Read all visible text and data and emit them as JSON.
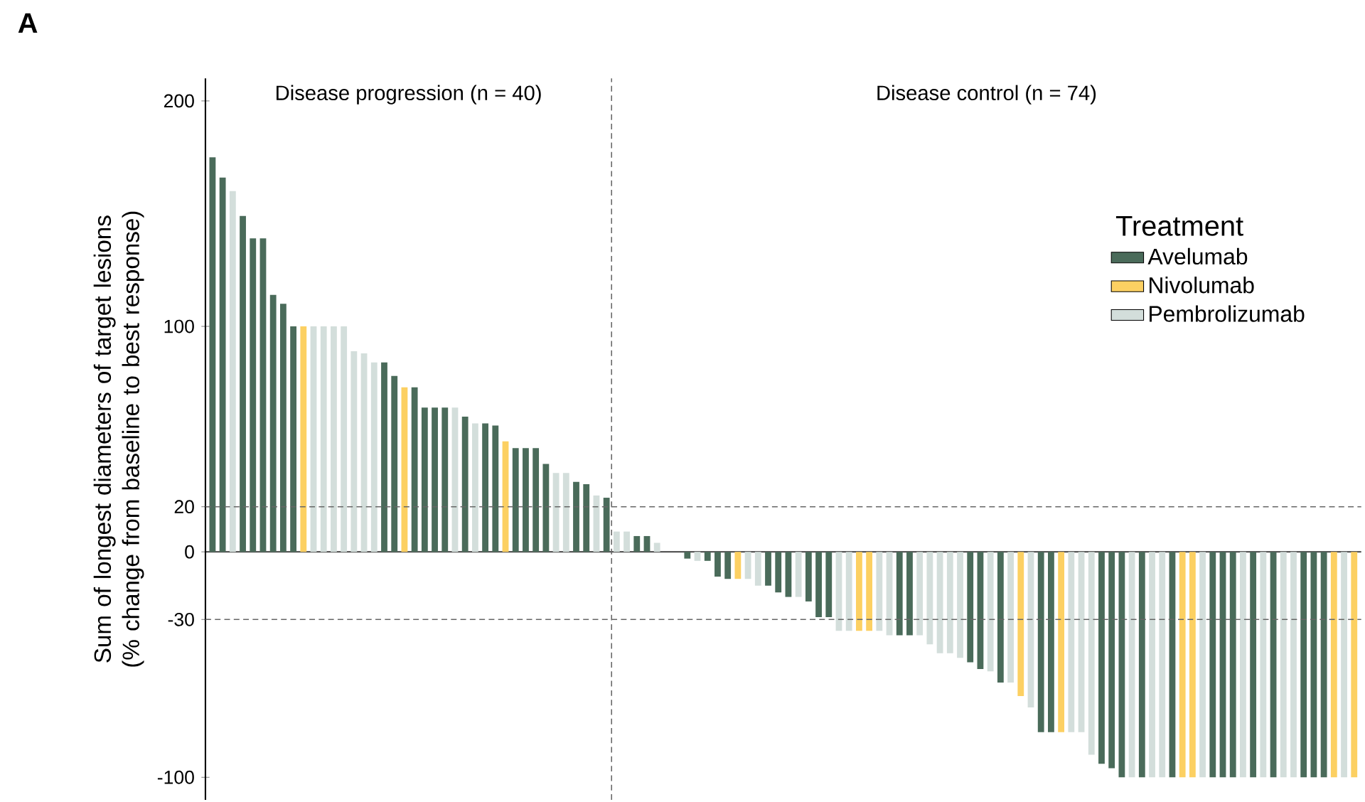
{
  "chart_data": {
    "type": "bar",
    "title": "A",
    "ylabel": "Sum of longest diameters of target lesions (% change from baseline to best response)",
    "legend_title": "Treatment",
    "annotations": [
      "Disease progression (n = 40)",
      "Disease control (n = 74)"
    ],
    "categories": [
      null,
      null,
      null,
      null,
      null,
      null,
      null,
      null,
      null,
      null,
      null,
      null,
      null,
      null,
      null,
      null,
      null,
      null,
      null,
      null,
      null,
      null,
      null,
      null,
      null,
      null,
      null,
      null,
      null,
      null,
      null,
      null,
      null,
      null,
      null,
      null,
      null,
      null,
      null,
      null,
      null,
      null,
      null,
      null,
      null,
      null,
      null,
      null,
      null,
      null,
      null,
      null,
      null,
      null,
      null,
      null,
      null,
      null,
      null,
      null,
      null,
      null,
      null,
      null,
      null,
      null,
      null,
      null,
      null,
      null,
      null,
      null,
      null,
      null,
      null,
      null,
      null,
      null,
      null,
      null,
      null,
      null,
      null,
      null,
      null,
      null,
      null,
      null,
      null,
      null,
      null,
      null,
      null,
      null,
      null,
      null,
      null,
      null,
      null,
      null,
      null,
      null,
      null,
      null,
      null,
      null,
      null,
      null,
      null,
      null,
      null,
      null,
      null,
      null
    ],
    "series": [
      {
        "name": "Avelumab",
        "color": "#4a6b5a",
        "values": [
          175,
          166,
          null,
          149,
          139,
          139,
          114,
          110,
          100,
          null,
          null,
          null,
          null,
          null,
          null,
          null,
          null,
          84,
          78,
          null,
          73,
          64,
          64,
          64,
          null,
          60,
          null,
          57,
          56,
          null,
          46,
          46,
          46,
          39,
          null,
          null,
          31,
          30,
          null,
          24,
          null,
          null,
          7,
          7,
          null,
          null,
          null,
          -3,
          null,
          -4,
          -11,
          -12,
          null,
          null,
          null,
          -15,
          -18,
          -20,
          null,
          -22,
          -29,
          -29,
          null,
          null,
          null,
          null,
          null,
          null,
          -37,
          -37,
          null,
          null,
          null,
          null,
          null,
          -49,
          -52,
          null,
          -58,
          null,
          null,
          null,
          -80,
          -80,
          null,
          null,
          null,
          null,
          -94,
          -96,
          -100,
          null,
          -100,
          null,
          null,
          -100,
          null,
          null,
          null,
          -100,
          -100,
          -100,
          null,
          -100,
          null,
          -100,
          null,
          null,
          -100,
          -100,
          -100,
          null,
          null,
          null
        ]
      },
      {
        "name": "Nivolumab",
        "color": "#fcd062",
        "values": [
          null,
          null,
          null,
          null,
          null,
          null,
          null,
          null,
          null,
          100,
          null,
          null,
          null,
          null,
          null,
          null,
          null,
          null,
          null,
          73,
          null,
          null,
          null,
          null,
          null,
          null,
          null,
          null,
          null,
          49,
          null,
          null,
          null,
          null,
          null,
          null,
          null,
          null,
          null,
          null,
          null,
          null,
          null,
          null,
          null,
          null,
          null,
          null,
          null,
          null,
          null,
          null,
          -12,
          null,
          null,
          null,
          null,
          null,
          null,
          null,
          null,
          null,
          null,
          null,
          -35,
          -35,
          null,
          null,
          null,
          null,
          null,
          null,
          null,
          null,
          null,
          null,
          null,
          null,
          null,
          null,
          -64,
          null,
          null,
          null,
          -80,
          null,
          null,
          null,
          null,
          null,
          null,
          null,
          null,
          null,
          null,
          null,
          -100,
          -100,
          null,
          null,
          null,
          null,
          null,
          null,
          null,
          null,
          null,
          null,
          null,
          null,
          null,
          -100,
          null,
          -100
        ]
      },
      {
        "name": "Pembrolizumab",
        "color": "#d3dedb",
        "values": [
          null,
          null,
          160,
          null,
          null,
          null,
          null,
          null,
          null,
          null,
          100,
          100,
          100,
          100,
          89,
          88,
          84,
          null,
          null,
          null,
          null,
          null,
          null,
          null,
          64,
          null,
          57,
          null,
          null,
          null,
          null,
          null,
          null,
          null,
          35,
          35,
          null,
          null,
          25,
          null,
          9,
          9,
          null,
          null,
          4,
          null,
          null,
          null,
          -4,
          null,
          null,
          null,
          null,
          -12,
          -15,
          null,
          null,
          null,
          -20,
          null,
          null,
          null,
          -35,
          -35,
          null,
          null,
          -35,
          -37,
          null,
          null,
          -37,
          -41,
          -45,
          -45,
          -47,
          null,
          null,
          -53,
          null,
          -58,
          null,
          -69,
          null,
          null,
          null,
          -80,
          -80,
          -90,
          null,
          null,
          null,
          -100,
          null,
          -100,
          -100,
          null,
          null,
          null,
          -100,
          null,
          null,
          null,
          -100,
          null,
          -100,
          null,
          -100,
          -100,
          null,
          null,
          null,
          null,
          -100,
          null
        ]
      }
    ],
    "ylim": [
      -110,
      210
    ],
    "yticks": [
      -100,
      -30,
      0,
      20,
      100,
      200
    ],
    "ref_lines": [
      {
        "axis": "y",
        "value": 20,
        "line_style": "dashed",
        "color": "#666666"
      },
      {
        "axis": "y",
        "value": -30,
        "line_style": "dashed",
        "color": "#666666"
      }
    ],
    "legend": "top right",
    "grid": false
  }
}
